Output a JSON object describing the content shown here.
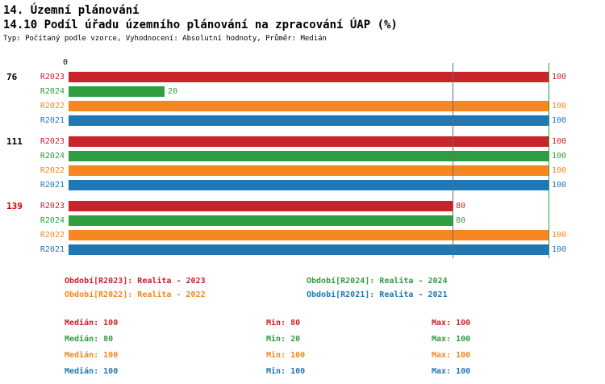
{
  "title": "14. Územní plánování",
  "subtitle": "14.10 Podíl úřadu územního plánování na zpracování ÚAP (%)",
  "meta": "Typ: Počítaný podle vzorce, Vyhodnocení: Absolutní hodnoty, Průměr: Medián",
  "chart_data": {
    "type": "bar",
    "orientation": "horizontal",
    "xlim": [
      0,
      100
    ],
    "origin_label": "0",
    "series_colors": {
      "R2023": "#c9232b",
      "R2024": "#2e9e41",
      "R2022": "#f6861f",
      "R2021": "#1f77b4"
    },
    "gridlines": [
      {
        "value": 80,
        "color": "#6b6b6b"
      },
      {
        "value": 100,
        "color": "#2e9e41"
      }
    ],
    "groups": [
      {
        "label": "76",
        "label_color": "#000000",
        "bars": [
          {
            "series": "R2023",
            "value": 100
          },
          {
            "series": "R2024",
            "value": 20
          },
          {
            "series": "R2022",
            "value": 100
          },
          {
            "series": "R2021",
            "value": 100
          }
        ]
      },
      {
        "label": "111",
        "label_color": "#000000",
        "bars": [
          {
            "series": "R2023",
            "value": 100
          },
          {
            "series": "R2024",
            "value": 100
          },
          {
            "series": "R2022",
            "value": 100
          },
          {
            "series": "R2021",
            "value": 100
          }
        ]
      },
      {
        "label": "139",
        "label_color": "#cc0000",
        "bars": [
          {
            "series": "R2023",
            "value": 80
          },
          {
            "series": "R2024",
            "value": 80
          },
          {
            "series": "R2022",
            "value": 100
          },
          {
            "series": "R2021",
            "value": 100
          }
        ]
      }
    ]
  },
  "legend": {
    "rows": [
      {
        "left": {
          "label": "Období[R2023]: Realita - 2023",
          "color": "#c9232b"
        },
        "right": {
          "label": "Období[R2024]: Realita - 2024",
          "color": "#2e9e41"
        }
      },
      {
        "left": {
          "label": "Období[R2022]: Realita - 2022",
          "color": "#f6861f"
        },
        "right": {
          "label": "Období[R2021]: Realita - 2021",
          "color": "#1f77b4"
        }
      }
    ]
  },
  "stats": {
    "rows": [
      {
        "median": "Medián: 100",
        "min": "Min: 80",
        "max": "Max: 100",
        "color": "#c9232b"
      },
      {
        "median": "Medián: 80",
        "min": "Min: 20",
        "max": "Max: 100",
        "color": "#2e9e41"
      },
      {
        "median": "Medián: 100",
        "min": "Min: 100",
        "max": "Max: 100",
        "color": "#f6861f"
      },
      {
        "median": "Medián: 100",
        "min": "Min: 100",
        "max": "Max: 100",
        "color": "#1f77b4"
      }
    ]
  }
}
